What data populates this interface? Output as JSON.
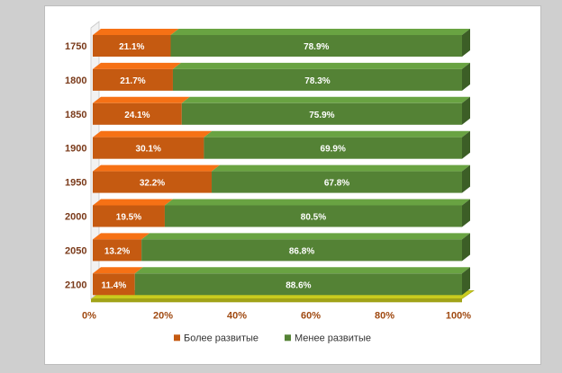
{
  "chart_data": {
    "type": "bar",
    "orientation": "horizontal",
    "stacked": "percent",
    "categories": [
      "1750",
      "1800",
      "1850",
      "1900",
      "1950",
      "2000",
      "2050",
      "2100"
    ],
    "series": [
      {
        "name": "Более развитые",
        "color": "#c55a11",
        "values": [
          21.1,
          21.7,
          24.1,
          30.1,
          32.2,
          19.5,
          13.2,
          11.4
        ],
        "labels": [
          "21.1%",
          "21.7%",
          "24.1%",
          "30.1%",
          "32.2%",
          "19.5%",
          "13.2%",
          "11.4%"
        ]
      },
      {
        "name": "Менее развитые",
        "color": "#548235",
        "values": [
          78.9,
          78.3,
          75.9,
          69.9,
          67.8,
          80.5,
          86.8,
          88.6
        ],
        "labels": [
          "78.9%",
          "78.3%",
          "75.9%",
          "69.9%",
          "67.8%",
          "80.5%",
          "86.8%",
          "88.6%"
        ]
      }
    ],
    "xaxis": {
      "ticks": [
        0,
        20,
        40,
        60,
        80,
        100
      ],
      "tick_labels": [
        "0%",
        "20%",
        "40%",
        "60%",
        "80%",
        "100%"
      ],
      "range": [
        0,
        100
      ]
    },
    "floor_color": "#c9cc1e",
    "legend_position": "bottom"
  }
}
